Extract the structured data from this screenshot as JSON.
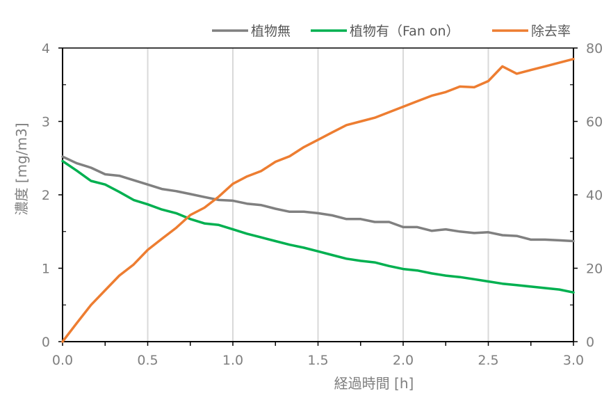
{
  "chart_data": {
    "type": "line",
    "title": "",
    "xlabel": "経過時間 [h]",
    "ylabel": "濃度 [mg/m3]",
    "y2label": "",
    "xlim": [
      0,
      3.0
    ],
    "ylim": [
      0,
      4
    ],
    "y2lim": [
      0,
      80
    ],
    "xticks": [
      "0.0",
      "0.5",
      "1.0",
      "1.5",
      "2.0",
      "2.5",
      "3.0"
    ],
    "yticks": [
      "0",
      "1",
      "2",
      "3",
      "4"
    ],
    "y2ticks": [
      "0",
      "20",
      "40",
      "60",
      "80"
    ],
    "grid": "vertical",
    "legend": "top-right",
    "series": [
      {
        "name": "植物無",
        "color": "#808080",
        "axis": "left",
        "x": [
          0,
          0.083,
          0.167,
          0.25,
          0.333,
          0.417,
          0.5,
          0.583,
          0.667,
          0.75,
          0.833,
          0.917,
          1.0,
          1.083,
          1.167,
          1.25,
          1.333,
          1.417,
          1.5,
          1.583,
          1.667,
          1.75,
          1.833,
          1.917,
          2.0,
          2.083,
          2.167,
          2.25,
          2.333,
          2.417,
          2.5,
          2.583,
          2.667,
          2.75,
          2.833,
          2.917,
          3.0
        ],
        "values": [
          2.52,
          2.43,
          2.37,
          2.28,
          2.26,
          2.2,
          2.14,
          2.08,
          2.05,
          2.01,
          1.97,
          1.93,
          1.92,
          1.88,
          1.86,
          1.81,
          1.77,
          1.77,
          1.75,
          1.72,
          1.67,
          1.67,
          1.63,
          1.63,
          1.56,
          1.56,
          1.51,
          1.53,
          1.5,
          1.48,
          1.49,
          1.45,
          1.44,
          1.39,
          1.39,
          1.38,
          1.37
        ]
      },
      {
        "name": "植物有（Fan on）",
        "color": "#00b050",
        "axis": "left",
        "x": [
          0,
          0.083,
          0.167,
          0.25,
          0.333,
          0.417,
          0.5,
          0.583,
          0.667,
          0.75,
          0.833,
          0.917,
          1.0,
          1.083,
          1.167,
          1.25,
          1.333,
          1.417,
          1.5,
          1.583,
          1.667,
          1.75,
          1.833,
          1.917,
          2.0,
          2.083,
          2.167,
          2.25,
          2.333,
          2.417,
          2.5,
          2.583,
          2.667,
          2.75,
          2.833,
          2.917,
          3.0
        ],
        "values": [
          2.46,
          2.33,
          2.19,
          2.14,
          2.04,
          1.93,
          1.87,
          1.8,
          1.75,
          1.67,
          1.61,
          1.59,
          1.53,
          1.47,
          1.42,
          1.37,
          1.32,
          1.28,
          1.23,
          1.18,
          1.13,
          1.1,
          1.08,
          1.03,
          0.99,
          0.97,
          0.93,
          0.9,
          0.88,
          0.85,
          0.82,
          0.79,
          0.77,
          0.75,
          0.73,
          0.71,
          0.67
        ]
      },
      {
        "name": "除去率",
        "color": "#ed7d31",
        "axis": "right",
        "x": [
          0,
          0.083,
          0.167,
          0.25,
          0.333,
          0.417,
          0.5,
          0.583,
          0.667,
          0.75,
          0.833,
          0.917,
          1.0,
          1.083,
          1.167,
          1.25,
          1.333,
          1.417,
          1.5,
          1.583,
          1.667,
          1.75,
          1.833,
          1.917,
          2.0,
          2.083,
          2.167,
          2.25,
          2.333,
          2.417,
          2.5,
          2.583,
          2.667,
          2.75,
          2.833,
          2.917,
          3.0
        ],
        "values": [
          0,
          5,
          10,
          14,
          18,
          21,
          25,
          28,
          31,
          34.5,
          36.5,
          39.5,
          43,
          45,
          46.5,
          49,
          50.5,
          53,
          55,
          57,
          59,
          60,
          61,
          62.5,
          64,
          65.5,
          67,
          68,
          69.5,
          69.3,
          71,
          75,
          73,
          74,
          75,
          76,
          77
        ]
      }
    ]
  }
}
